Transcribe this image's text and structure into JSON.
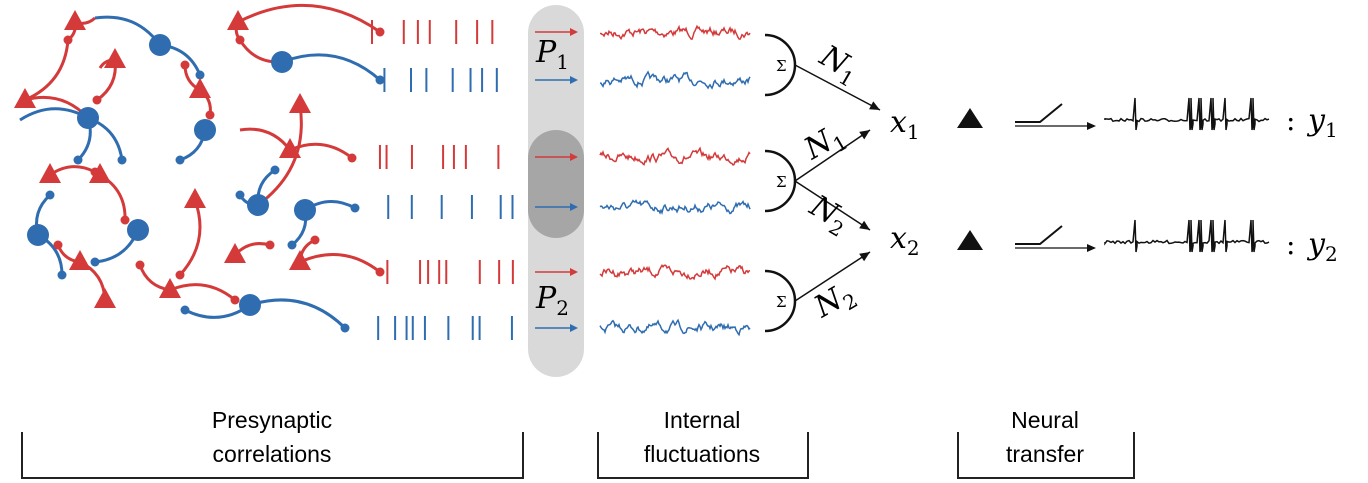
{
  "inputs": [
    {
      "symbol": "P",
      "subscript": "1"
    },
    {
      "symbol": "P",
      "subscript": "2"
    }
  ],
  "sum_nodes": [
    "Σ",
    "Σ",
    "Σ"
  ],
  "edges": [
    {
      "symbol": "N",
      "subscript": "1"
    },
    {
      "symbol": "N",
      "subscript": "1"
    },
    {
      "symbol": "N",
      "subscript": "2"
    },
    {
      "symbol": "N",
      "subscript": "2"
    }
  ],
  "outputs": [
    {
      "input": {
        "symbol": "x",
        "subscript": "1"
      },
      "separator": ":",
      "output": {
        "symbol": "y",
        "subscript": "1"
      }
    },
    {
      "input": {
        "symbol": "x",
        "subscript": "2"
      },
      "separator": ":",
      "output": {
        "symbol": "y",
        "subscript": "2"
      }
    }
  ],
  "sections": [
    {
      "lines": [
        "Presynaptic",
        "correlations"
      ]
    },
    {
      "lines": [
        "Internal",
        "fluctuations"
      ]
    },
    {
      "lines": [
        "Neural",
        "transfer"
      ]
    }
  ]
}
